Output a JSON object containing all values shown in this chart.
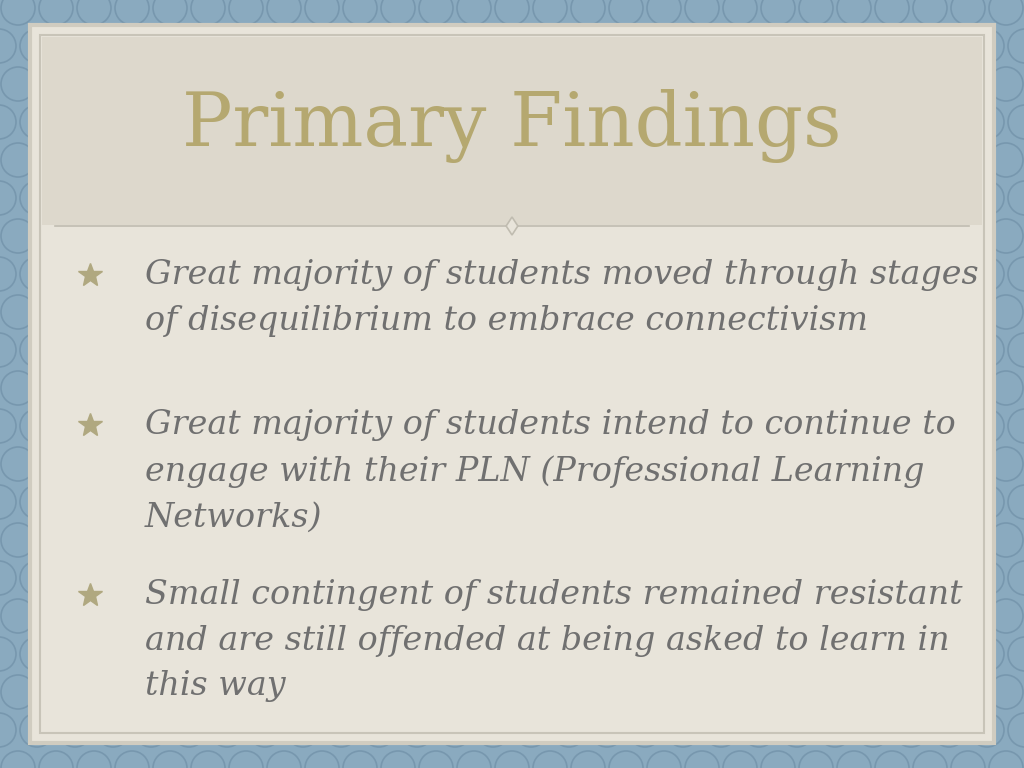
{
  "title": "Primary Findings",
  "title_color": "#b5a870",
  "title_fontsize": 54,
  "bullet_points": [
    "Great majority of students moved through stages\nof disequilibrium to embrace connectivism",
    "Great majority of students intend to continue to\nengage with their PLN (Professional Learning\nNetworks)",
    "Small contingent of students remained resistant\nand are still offended at being asked to learn in\nthis way"
  ],
  "bullet_color": "#707070",
  "bullet_fontsize": 24,
  "bg_outer": "#8aaabf",
  "bg_slide": "#e8e4da",
  "border_outer_color": "#d0ccc0",
  "border_inner_color": "#c8c4b8",
  "title_area_color": "#ddd8cc",
  "bullet_marker_color": "#b0a880",
  "divider_color": "#c0bcb0",
  "figsize": [
    10.24,
    7.68
  ],
  "dpi": 100
}
